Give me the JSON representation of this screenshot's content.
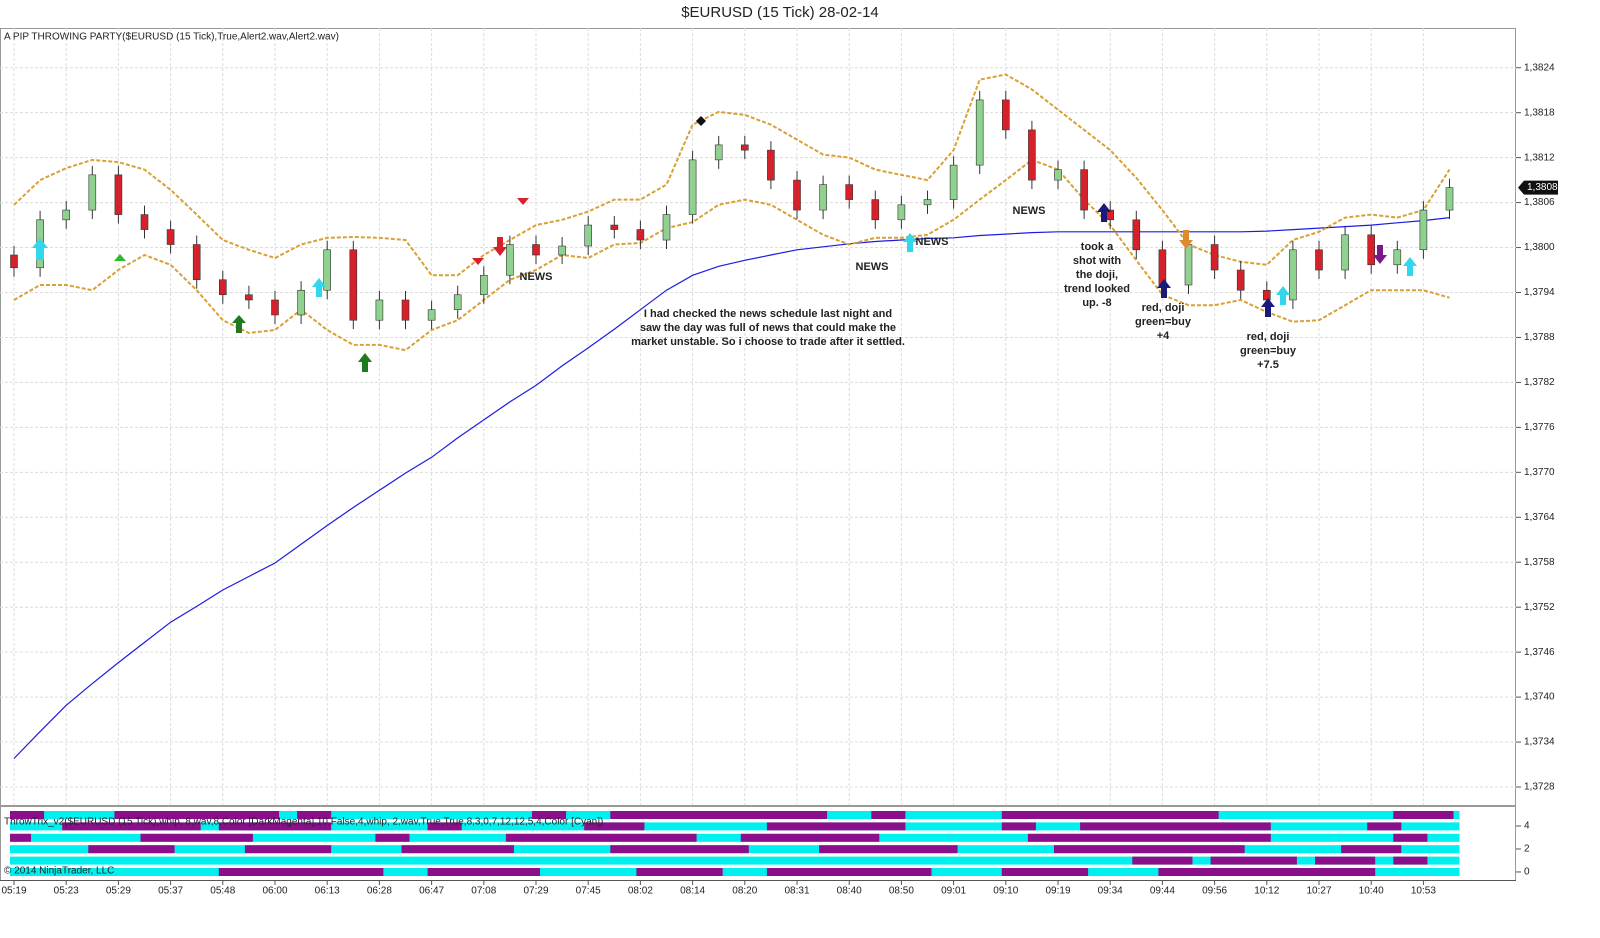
{
  "chart_data": {
    "type": "candlestick",
    "title": "$EURUSD (15 Tick)  28-02-14",
    "indicator_label": "A PIP THROWING PARTY($EURUSD (15 Tick),True,Alert2.wav,Alert2.wav)",
    "categories": [
      "05:19",
      null,
      "05:23",
      null,
      "05:29",
      null,
      "05:37",
      null,
      "05:48",
      null,
      "06:00",
      null,
      "06:13",
      null,
      "06:28",
      null,
      "06:47",
      null,
      "07:08",
      null,
      "07:29",
      null,
      "07:45",
      null,
      "08:02",
      null,
      "08:14",
      null,
      "08:20",
      null,
      "08:31",
      null,
      "08:40",
      null,
      "08:50",
      null,
      "09:01",
      null,
      "09:10",
      null,
      "09:19",
      null,
      "09:34",
      null,
      "09:44",
      null,
      "09:56",
      null,
      "10:12",
      null,
      "10:27",
      null,
      "10:40",
      null,
      "10:53",
      null
    ],
    "open": [
      1.3799,
      1.37973,
      1.38037,
      1.3805,
      1.38097,
      1.38044,
      1.38024,
      1.38004,
      1.37957,
      1.37937,
      1.3793,
      1.3791,
      1.37943,
      1.37997,
      1.37903,
      1.3793,
      1.37903,
      1.37917,
      1.37937,
      1.37963,
      1.38004,
      1.3799,
      1.38002,
      1.3803,
      1.38024,
      1.3801,
      1.38044,
      1.38117,
      1.38137,
      1.3813,
      1.3809,
      1.3805,
      1.38084,
      1.38064,
      1.38037,
      1.38057,
      1.38064,
      1.3811,
      1.38197,
      1.38157,
      1.3809,
      1.38104,
      1.3805,
      1.38037,
      1.37997,
      1.3795,
      1.38004,
      1.3797,
      1.37943,
      1.3793,
      1.37997,
      1.3797,
      1.38017,
      1.37977,
      1.37997,
      1.3805
    ],
    "high": [
      1.38002,
      1.38049,
      1.38062,
      1.38109,
      1.38109,
      1.38056,
      1.38036,
      1.38016,
      1.37969,
      1.37949,
      1.37942,
      1.37955,
      1.38009,
      1.38009,
      1.37942,
      1.37942,
      1.37929,
      1.37949,
      1.37975,
      1.38016,
      1.38016,
      1.38014,
      1.38042,
      1.38042,
      1.38036,
      1.38056,
      1.38129,
      1.38149,
      1.38149,
      1.38142,
      1.38102,
      1.38096,
      1.38096,
      1.38076,
      1.38069,
      1.38076,
      1.38122,
      1.38209,
      1.38209,
      1.38169,
      1.38116,
      1.38116,
      1.38062,
      1.38049,
      1.38009,
      1.38016,
      1.38016,
      1.37982,
      1.37955,
      1.38009,
      1.38009,
      1.38029,
      1.38029,
      1.38009,
      1.38062,
      1.38092
    ],
    "low": [
      1.37961,
      1.37961,
      1.38025,
      1.38038,
      1.38032,
      1.38012,
      1.37992,
      1.37945,
      1.37925,
      1.37918,
      1.37898,
      1.37898,
      1.37931,
      1.37891,
      1.37891,
      1.37891,
      1.37891,
      1.37905,
      1.37925,
      1.37951,
      1.37978,
      1.37978,
      1.3799,
      1.38012,
      1.37998,
      1.37998,
      1.38032,
      1.38105,
      1.38118,
      1.38078,
      1.38038,
      1.38038,
      1.38052,
      1.38025,
      1.38025,
      1.38045,
      1.38052,
      1.38098,
      1.38145,
      1.38078,
      1.38078,
      1.38038,
      1.38025,
      1.37985,
      1.37938,
      1.37938,
      1.37958,
      1.37931,
      1.37918,
      1.37918,
      1.37958,
      1.37958,
      1.37965,
      1.37965,
      1.37985,
      1.38038
    ],
    "close": [
      1.37973,
      1.38037,
      1.3805,
      1.38097,
      1.38044,
      1.38024,
      1.38004,
      1.37957,
      1.37937,
      1.3793,
      1.3791,
      1.37943,
      1.37997,
      1.37903,
      1.3793,
      1.37903,
      1.37917,
      1.37937,
      1.37963,
      1.38004,
      1.3799,
      1.38002,
      1.3803,
      1.38024,
      1.3801,
      1.38044,
      1.38117,
      1.38137,
      1.3813,
      1.3809,
      1.3805,
      1.38084,
      1.38064,
      1.38037,
      1.38057,
      1.38064,
      1.3811,
      1.38197,
      1.38157,
      1.3809,
      1.38104,
      1.3805,
      1.38037,
      1.37997,
      1.3795,
      1.38004,
      1.3797,
      1.37943,
      1.3793,
      1.37997,
      1.3797,
      1.38017,
      1.37977,
      1.37997,
      1.3805,
      1.3808
    ],
    "up_color": "#8fd18f",
    "down_color": "#d6212a",
    "lines": [
      {
        "color": "#1c1ce0",
        "dashed": false,
        "values": [
          1.37318,
          1.37354,
          1.37389,
          1.37418,
          1.37446,
          1.37473,
          1.375,
          1.37521,
          1.37543,
          1.37561,
          1.37579,
          1.37604,
          1.37629,
          1.37653,
          1.37676,
          1.37699,
          1.3772,
          1.37746,
          1.3777,
          1.37794,
          1.37816,
          1.37842,
          1.37866,
          1.37891,
          1.37917,
          1.37943,
          1.37963,
          1.37975,
          1.37983,
          1.3799,
          1.37997,
          1.38001,
          1.38005,
          1.38008,
          1.3801,
          1.38012,
          1.38013,
          1.38016,
          1.38018,
          1.3802,
          1.38021,
          1.38021,
          1.38021,
          1.38021,
          1.38021,
          1.38021,
          1.38021,
          1.38021,
          1.38022,
          1.38024,
          1.38026,
          1.38028,
          1.3803,
          1.38033,
          1.38036,
          1.3804
        ]
      },
      {
        "color": "#d9a035",
        "dashed": true,
        "values": [
          1.38057,
          1.3809,
          1.38106,
          1.38117,
          1.38114,
          1.38104,
          1.38077,
          1.38044,
          1.3801,
          1.37997,
          1.37986,
          1.38004,
          1.38013,
          1.38014,
          1.38013,
          1.3801,
          1.37963,
          1.37963,
          1.3799,
          1.3801,
          1.3803,
          1.38037,
          1.38048,
          1.38064,
          1.38064,
          1.38084,
          1.38164,
          1.38181,
          1.38177,
          1.38164,
          1.38144,
          1.38124,
          1.3812,
          1.38104,
          1.38097,
          1.3809,
          1.3813,
          1.38224,
          1.38231,
          1.38211,
          1.38184,
          1.38157,
          1.3813,
          1.38093,
          1.3805,
          1.38004,
          1.3799,
          1.37981,
          1.37977,
          1.3801,
          1.38021,
          1.3804,
          1.38044,
          1.3804,
          1.3805,
          1.38104
        ]
      },
      {
        "color": "#d9a035",
        "dashed": true,
        "values": [
          1.3793,
          1.3795,
          1.3795,
          1.37943,
          1.3797,
          1.3799,
          1.37977,
          1.37943,
          1.37903,
          1.37886,
          1.3789,
          1.37917,
          1.3789,
          1.3787,
          1.3787,
          1.37863,
          1.3789,
          1.37903,
          1.3793,
          1.37957,
          1.3797,
          1.3799,
          1.37986,
          1.38004,
          1.38006,
          1.38026,
          1.38034,
          1.38057,
          1.38064,
          1.38057,
          1.38037,
          1.38017,
          1.38004,
          1.38013,
          1.38013,
          1.38017,
          1.38037,
          1.38064,
          1.3809,
          1.38117,
          1.38104,
          1.38064,
          1.3803,
          1.37983,
          1.37937,
          1.37923,
          1.37923,
          1.3793,
          1.37914,
          1.37901,
          1.37903,
          1.37923,
          1.37943,
          1.37943,
          1.37943,
          1.37933
        ]
      }
    ],
    "ylim": [
      1.37256,
      1.38293
    ],
    "yticks": [
      {
        "value": 1.3824,
        "label": "1,3824"
      },
      {
        "value": 1.3818,
        "label": "1,3818"
      },
      {
        "value": 1.3812,
        "label": "1,3812"
      },
      {
        "value": 1.3806,
        "label": "1,3806"
      },
      {
        "value": 1.38,
        "label": "1,3800"
      },
      {
        "value": 1.3794,
        "label": "1,3794"
      },
      {
        "value": 1.3788,
        "label": "1,3788"
      },
      {
        "value": 1.3782,
        "label": "1,3782"
      },
      {
        "value": 1.3776,
        "label": "1,3776"
      },
      {
        "value": 1.377,
        "label": "1,3770"
      },
      {
        "value": 1.3764,
        "label": "1,3764"
      },
      {
        "value": 1.3758,
        "label": "1,3758"
      },
      {
        "value": 1.3752,
        "label": "1,3752"
      },
      {
        "value": 1.3746,
        "label": "1,3746"
      },
      {
        "value": 1.374,
        "label": "1,3740"
      },
      {
        "value": 1.3734,
        "label": "1,3734"
      },
      {
        "value": 1.3728,
        "label": "1,3728"
      }
    ],
    "grid": true,
    "last_price": {
      "value": 1.3808,
      "label": "1,3808"
    },
    "annotations": [
      {
        "lines": [
          "NEWS"
        ]
      },
      {
        "lines": [
          "NEWS"
        ]
      },
      {
        "lines": [
          "NEWS"
        ]
      },
      {
        "lines": [
          "NEWS"
        ]
      },
      {
        "lines": [
          "I had checked the news schedule last night and",
          "saw the day was full of news that could make the",
          "market unstable.  So i choose to trade after it settled."
        ]
      },
      {
        "lines": [
          "took a",
          "shot with",
          "the doji,",
          "trend looked",
          "up. -8"
        ]
      },
      {
        "lines": [
          "red, doji",
          "green=buy",
          "+4"
        ]
      },
      {
        "lines": [
          "red, doji",
          "green=buy",
          "+7.5"
        ]
      }
    ],
    "panel": {
      "label": "ThrowTrix_v2($EURUSD (15 Tick),whip, 8,wav,8,Color [DarkMagenta],10,False,4,whip, 2,wav,True,True,8,3,0,7,12,12,5,4,Color [Cyan])",
      "ylim": [
        -0.7,
        5.74
      ],
      "yticks": [
        0,
        2,
        4
      ],
      "base_color": "#00f0f0",
      "segment_color": "#8b0f8b",
      "rows": [
        [
          [
            0,
            1
          ],
          [
            4,
            10
          ],
          [
            11,
            12
          ],
          [
            20,
            21
          ],
          [
            23,
            31
          ],
          [
            33,
            34
          ],
          [
            38,
            46
          ],
          [
            53,
            55
          ]
        ],
        [
          [
            2,
            7
          ],
          [
            8,
            12
          ],
          [
            16,
            17
          ],
          [
            22,
            24
          ],
          [
            29,
            34
          ],
          [
            38,
            39
          ],
          [
            41,
            48
          ],
          [
            52,
            53
          ]
        ],
        [
          [
            0,
            0.5
          ],
          [
            5,
            9
          ],
          [
            14,
            15
          ],
          [
            19,
            26
          ],
          [
            28,
            33
          ],
          [
            39,
            48
          ],
          [
            53,
            54
          ]
        ],
        [
          [
            3,
            6
          ],
          [
            9,
            12
          ],
          [
            15,
            19
          ],
          [
            23,
            28
          ],
          [
            31,
            36
          ],
          [
            40,
            47
          ],
          [
            51,
            53
          ]
        ],
        [
          [
            43,
            45
          ],
          [
            46,
            49
          ],
          [
            50,
            52
          ],
          [
            53,
            54
          ]
        ],
        [
          [
            8,
            14
          ],
          [
            16,
            20
          ],
          [
            24,
            27
          ],
          [
            29,
            35
          ],
          [
            38,
            41
          ],
          [
            44,
            52
          ]
        ]
      ]
    },
    "copyright": "© 2014 NinjaTrader, LLC"
  }
}
